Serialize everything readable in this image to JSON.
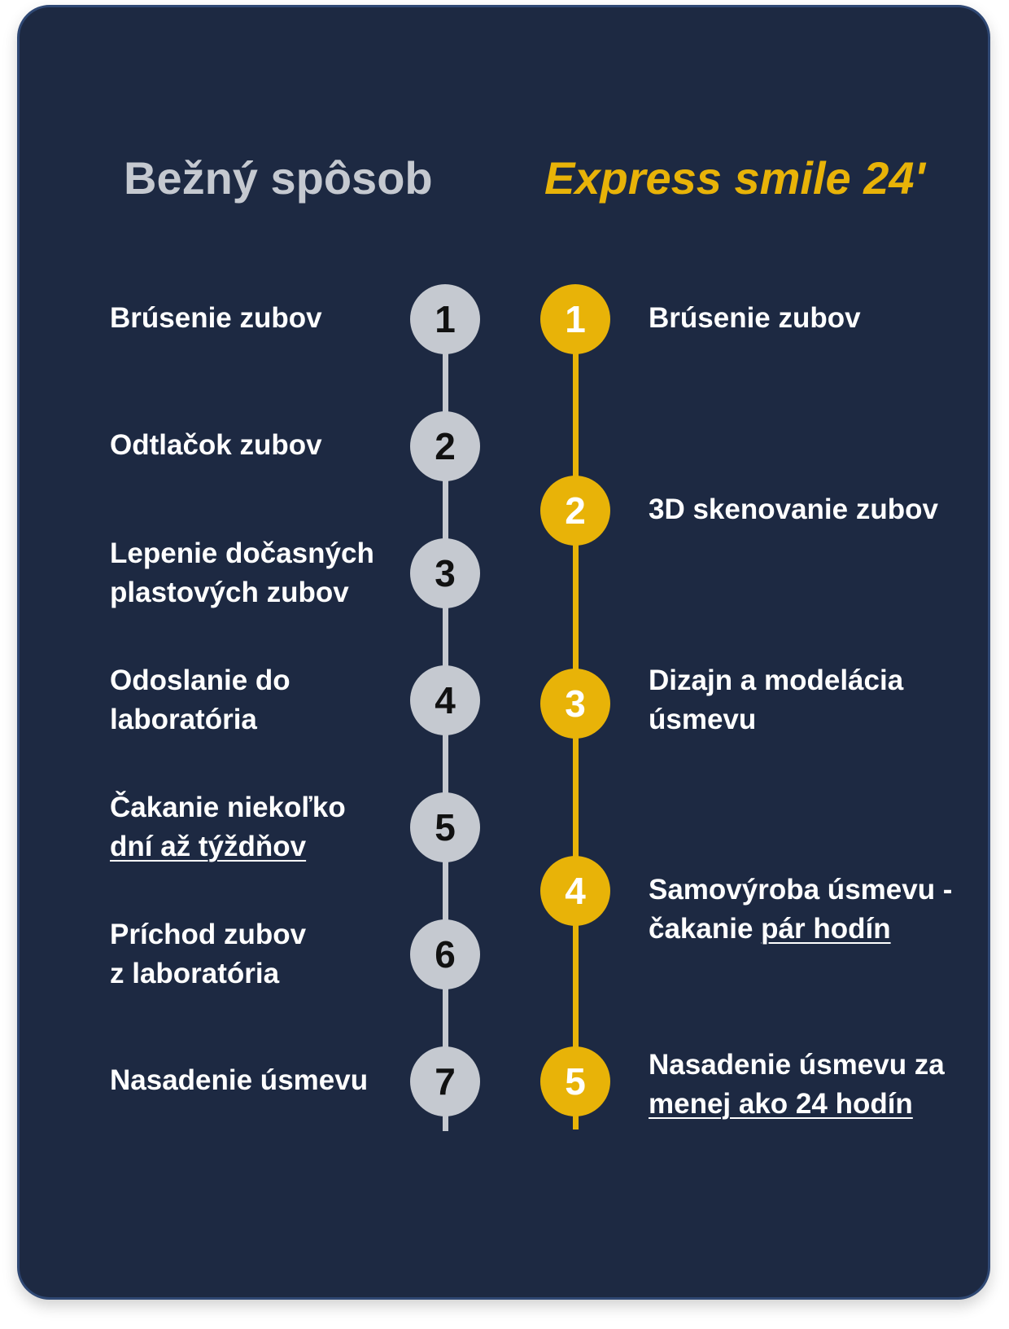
{
  "headings": {
    "left": "Bežný spôsob",
    "right": "Express smile 24'"
  },
  "left_steps": [
    {
      "number": "1",
      "line1": "Brúsenie zubov",
      "line2": ""
    },
    {
      "number": "2",
      "line1": "Odtlačok zubov",
      "line2": ""
    },
    {
      "number": "3",
      "line1": "Lepenie dočasných",
      "line2": "plastových zubov"
    },
    {
      "number": "4",
      "line1": "Odoslanie do",
      "line2": "laboratória"
    },
    {
      "number": "5",
      "line1": "Čakanie niekoľko",
      "line2": "dní až týždňov"
    },
    {
      "number": "6",
      "line1": "Príchod zubov",
      "line2": "z laboratória"
    },
    {
      "number": "7",
      "line1": "Nasadenie úsmevu",
      "line2": ""
    }
  ],
  "right_steps": [
    {
      "number": "1",
      "line1": "Brúsenie zubov",
      "line2_plain": "",
      "line2_underlined": ""
    },
    {
      "number": "2",
      "line1": "3D skenovanie zubov",
      "line2_plain": "",
      "line2_underlined": ""
    },
    {
      "number": "3",
      "line1": "Dizajn a modelácia",
      "line2_plain": "úsmevu",
      "line2_underlined": ""
    },
    {
      "number": "4",
      "line1": "Samovýroba úsmevu -",
      "line2_plain": "čakanie ",
      "line2_underlined": "pár hodín"
    },
    {
      "number": "5",
      "line1": "Nasadenie úsmevu za",
      "line2_plain": "",
      "line2_underlined": "menej ako 24 hodín"
    }
  ],
  "colors": {
    "background": "#1d2942",
    "border": "#2f4874",
    "grey": "#c5c9d0",
    "gold": "#e8b308",
    "text": "#ffffff"
  }
}
